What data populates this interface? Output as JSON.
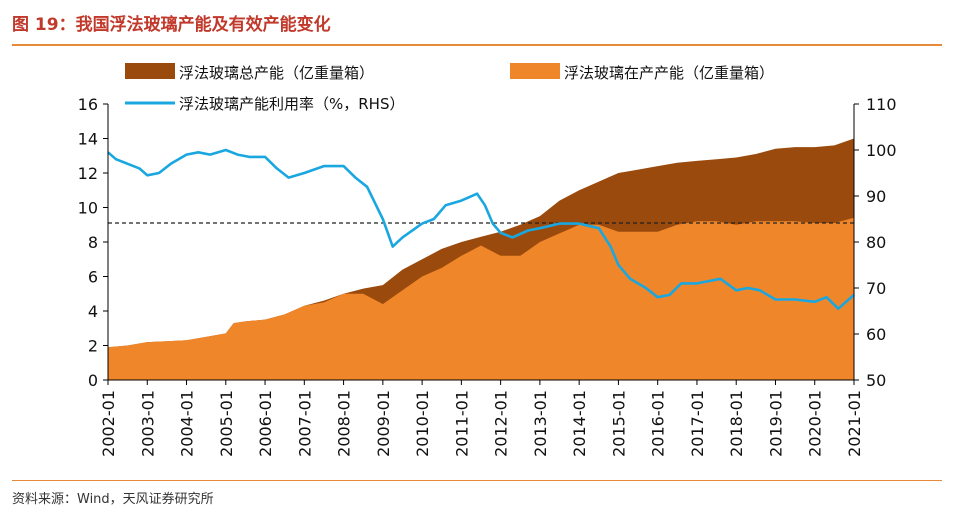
{
  "header": {
    "title": "图 19：我国浮法玻璃产能及有效产能变化"
  },
  "footer": {
    "source": "资料来源：Wind，天风证券研究所"
  },
  "chart_data": {
    "type": "area",
    "legend": [
      {
        "name": "浮法玻璃总产能（亿重量箱）",
        "color": "#9a4a0c",
        "kind": "area"
      },
      {
        "name": "浮法玻璃在产产能（亿重量箱）",
        "color": "#f0862a",
        "kind": "area"
      },
      {
        "name": "浮法玻璃产能利用率（%，RHS）",
        "color": "#1aa7e0",
        "kind": "line"
      }
    ],
    "x_tick_labels": [
      "2002-01",
      "2003-01",
      "2004-01",
      "2005-01",
      "2006-01",
      "2007-01",
      "2008-01",
      "2009-01",
      "2010-01",
      "2011-01",
      "2012-01",
      "2013-01",
      "2014-01",
      "2015-01",
      "2016-01",
      "2017-01",
      "2018-01",
      "2019-01",
      "2020-01",
      "2021-01"
    ],
    "y_left": {
      "min": 0,
      "max": 16,
      "ticks": [
        0,
        2,
        4,
        6,
        8,
        10,
        12,
        14,
        16
      ]
    },
    "y_right": {
      "min": 50,
      "max": 110,
      "ticks": [
        50,
        60,
        70,
        80,
        90,
        100,
        110
      ]
    },
    "reference_line_left": 9.1,
    "series": [
      {
        "name": "浮法玻璃总产能（亿重量箱）",
        "axis": "left",
        "points": [
          [
            2002.0,
            1.9
          ],
          [
            2002.5,
            2.0
          ],
          [
            2003.0,
            2.2
          ],
          [
            2003.5,
            2.25
          ],
          [
            2004.0,
            2.3
          ],
          [
            2004.5,
            2.5
          ],
          [
            2005.0,
            2.7
          ],
          [
            2005.2,
            3.3
          ],
          [
            2005.5,
            3.4
          ],
          [
            2006.0,
            3.5
          ],
          [
            2006.5,
            3.8
          ],
          [
            2007.0,
            4.3
          ],
          [
            2007.5,
            4.6
          ],
          [
            2008.0,
            5.0
          ],
          [
            2008.5,
            5.3
          ],
          [
            2009.0,
            5.5
          ],
          [
            2009.5,
            6.4
          ],
          [
            2010.0,
            7.0
          ],
          [
            2010.5,
            7.6
          ],
          [
            2011.0,
            8.0
          ],
          [
            2011.5,
            8.3
          ],
          [
            2012.0,
            8.6
          ],
          [
            2012.5,
            9.0
          ],
          [
            2013.0,
            9.5
          ],
          [
            2013.5,
            10.4
          ],
          [
            2014.0,
            11.0
          ],
          [
            2014.5,
            11.5
          ],
          [
            2015.0,
            12.0
          ],
          [
            2015.5,
            12.2
          ],
          [
            2016.0,
            12.4
          ],
          [
            2016.5,
            12.6
          ],
          [
            2017.0,
            12.7
          ],
          [
            2017.5,
            12.8
          ],
          [
            2018.0,
            12.9
          ],
          [
            2018.5,
            13.1
          ],
          [
            2019.0,
            13.4
          ],
          [
            2019.5,
            13.5
          ],
          [
            2020.0,
            13.5
          ],
          [
            2020.5,
            13.6
          ],
          [
            2021.0,
            14.0
          ]
        ]
      },
      {
        "name": "浮法玻璃在产产能（亿重量箱）",
        "axis": "left",
        "points": [
          [
            2002.0,
            1.9
          ],
          [
            2002.5,
            2.0
          ],
          [
            2003.0,
            2.2
          ],
          [
            2003.5,
            2.25
          ],
          [
            2004.0,
            2.3
          ],
          [
            2004.5,
            2.5
          ],
          [
            2005.0,
            2.7
          ],
          [
            2005.2,
            3.3
          ],
          [
            2005.5,
            3.4
          ],
          [
            2006.0,
            3.5
          ],
          [
            2006.5,
            3.8
          ],
          [
            2007.0,
            4.3
          ],
          [
            2007.5,
            4.5
          ],
          [
            2008.0,
            5.0
          ],
          [
            2008.5,
            5.0
          ],
          [
            2009.0,
            4.4
          ],
          [
            2009.5,
            5.2
          ],
          [
            2010.0,
            6.0
          ],
          [
            2010.5,
            6.5
          ],
          [
            2011.0,
            7.2
          ],
          [
            2011.5,
            7.8
          ],
          [
            2012.0,
            7.2
          ],
          [
            2012.5,
            7.2
          ],
          [
            2013.0,
            8.0
          ],
          [
            2013.5,
            8.5
          ],
          [
            2014.0,
            9.0
          ],
          [
            2014.5,
            9.0
          ],
          [
            2015.0,
            8.6
          ],
          [
            2015.5,
            8.6
          ],
          [
            2016.0,
            8.6
          ],
          [
            2016.5,
            9.0
          ],
          [
            2017.0,
            9.2
          ],
          [
            2017.5,
            9.2
          ],
          [
            2018.0,
            9.0
          ],
          [
            2018.5,
            9.2
          ],
          [
            2019.0,
            9.2
          ],
          [
            2019.5,
            9.2
          ],
          [
            2020.0,
            9.1
          ],
          [
            2020.5,
            9.1
          ],
          [
            2021.0,
            9.4
          ]
        ]
      },
      {
        "name": "浮法玻璃产能利用率（%，RHS）",
        "axis": "right",
        "points": [
          [
            2002.0,
            99.5
          ],
          [
            2002.2,
            98.0
          ],
          [
            2002.5,
            97.0
          ],
          [
            2002.8,
            96.0
          ],
          [
            2003.0,
            94.5
          ],
          [
            2003.3,
            95.0
          ],
          [
            2003.6,
            97.0
          ],
          [
            2004.0,
            99.0
          ],
          [
            2004.3,
            99.5
          ],
          [
            2004.6,
            99.0
          ],
          [
            2005.0,
            100.0
          ],
          [
            2005.3,
            99.0
          ],
          [
            2005.6,
            98.5
          ],
          [
            2006.0,
            98.5
          ],
          [
            2006.3,
            96.0
          ],
          [
            2006.6,
            94.0
          ],
          [
            2007.0,
            95.0
          ],
          [
            2007.5,
            96.5
          ],
          [
            2008.0,
            96.5
          ],
          [
            2008.3,
            94.0
          ],
          [
            2008.6,
            92.0
          ],
          [
            2009.0,
            85.0
          ],
          [
            2009.25,
            79.0
          ],
          [
            2009.5,
            81.0
          ],
          [
            2010.0,
            84.0
          ],
          [
            2010.3,
            85.0
          ],
          [
            2010.6,
            88.0
          ],
          [
            2011.0,
            89.0
          ],
          [
            2011.4,
            90.5
          ],
          [
            2011.6,
            88.0
          ],
          [
            2011.8,
            84.0
          ],
          [
            2012.0,
            82.0
          ],
          [
            2012.3,
            81.0
          ],
          [
            2012.7,
            82.5
          ],
          [
            2013.0,
            83.0
          ],
          [
            2013.5,
            84.0
          ],
          [
            2014.0,
            84.0
          ],
          [
            2014.5,
            83.0
          ],
          [
            2014.8,
            79.0
          ],
          [
            2015.0,
            75.0
          ],
          [
            2015.3,
            72.0
          ],
          [
            2015.7,
            70.0
          ],
          [
            2016.0,
            68.0
          ],
          [
            2016.3,
            68.5
          ],
          [
            2016.6,
            71.0
          ],
          [
            2017.0,
            71.0
          ],
          [
            2017.3,
            71.5
          ],
          [
            2017.6,
            72.0
          ],
          [
            2018.0,
            69.5
          ],
          [
            2018.3,
            70.0
          ],
          [
            2018.6,
            69.5
          ],
          [
            2019.0,
            67.5
          ],
          [
            2019.5,
            67.5
          ],
          [
            2020.0,
            67.0
          ],
          [
            2020.3,
            68.0
          ],
          [
            2020.6,
            65.5
          ],
          [
            2020.8,
            67.0
          ],
          [
            2021.0,
            68.5
          ]
        ]
      }
    ]
  }
}
